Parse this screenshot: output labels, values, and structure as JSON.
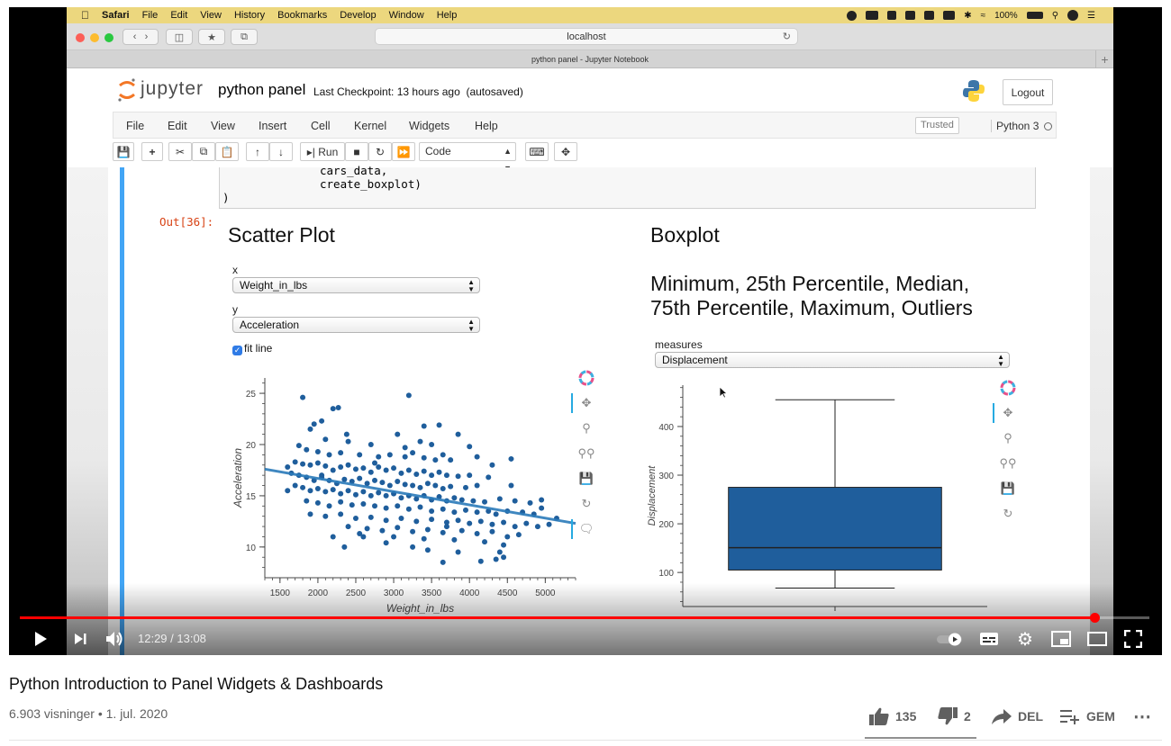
{
  "menubar": {
    "app": "Safari",
    "items": [
      "File",
      "Edit",
      "View",
      "History",
      "Bookmarks",
      "Develop",
      "Window",
      "Help"
    ],
    "battery": "100%"
  },
  "safari": {
    "url": "localhost",
    "tab_title": "python panel - Jupyter Notebook"
  },
  "jupyter": {
    "logo_text": "jupyter",
    "notebook_name": "python panel",
    "checkpoint": "Last Checkpoint: 13 hours ago",
    "autosaved": "(autosaved)",
    "logout": "Logout",
    "menu": [
      "File",
      "Edit",
      "View",
      "Insert",
      "Cell",
      "Kernel",
      "Widgets",
      "Help"
    ],
    "trusted": "Trusted",
    "kernel": "Python 3",
    "run_label": "Run",
    "cell_type": "Code"
  },
  "cell": {
    "code_lines": [
      "cars_data,",
      "create_boxplot)",
      ")"
    ],
    "out_prompt": "Out[36]:"
  },
  "scatter_panel": {
    "title": "Scatter Plot",
    "x_label": "x",
    "x_value": "Weight_in_lbs",
    "y_label": "y",
    "y_value": "Acceleration",
    "fit_line_label": "fit line",
    "fit_line_checked": true
  },
  "box_panel": {
    "title": "Boxplot",
    "subtitle_line1": "Minimum, 25th Percentile, Median,",
    "subtitle_line2": "75th Percentile, Maximum, Outliers",
    "measures_label": "measures",
    "measures_value": "Displacement"
  },
  "chart_data": [
    {
      "type": "scatter",
      "xlabel": "Weight_in_lbs",
      "ylabel": "Acceleration",
      "xlim": [
        1300,
        5400
      ],
      "ylim": [
        7,
        26.5
      ],
      "xticks": [
        1500,
        2000,
        2500,
        3000,
        3500,
        4000,
        4500,
        5000
      ],
      "yticks": [
        10,
        15,
        20,
        25
      ],
      "point_color": "#1f5e9c",
      "line_color": "#2b7bba",
      "fit_line": [
        [
          1300,
          17.6
        ],
        [
          5400,
          12.3
        ]
      ],
      "points": [
        [
          1800,
          24.6
        ],
        [
          1950,
          22
        ],
        [
          2050,
          22.3
        ],
        [
          2200,
          23.5
        ],
        [
          2270,
          23.6
        ],
        [
          3200,
          24.8
        ],
        [
          1900,
          21.5
        ],
        [
          2380,
          21
        ],
        [
          3050,
          21
        ],
        [
          3400,
          21.8
        ],
        [
          3600,
          21.9
        ],
        [
          3850,
          21
        ],
        [
          2100,
          20.5
        ],
        [
          2400,
          20.3
        ],
        [
          2700,
          20
        ],
        [
          3350,
          20.3
        ],
        [
          3150,
          19.7
        ],
        [
          3500,
          20
        ],
        [
          4000,
          19.8
        ],
        [
          1750,
          19.9
        ],
        [
          1850,
          19.5
        ],
        [
          2000,
          19.3
        ],
        [
          2150,
          19
        ],
        [
          2300,
          19.2
        ],
        [
          2550,
          19
        ],
        [
          2800,
          18.8
        ],
        [
          2950,
          19
        ],
        [
          3150,
          18.8
        ],
        [
          3250,
          19.2
        ],
        [
          3400,
          18.7
        ],
        [
          3650,
          19
        ],
        [
          3750,
          18.5
        ],
        [
          4100,
          18.8
        ],
        [
          4300,
          18
        ],
        [
          4550,
          18.6
        ],
        [
          1700,
          18.3
        ],
        [
          1800,
          18.1
        ],
        [
          1900,
          18
        ],
        [
          2000,
          18.2
        ],
        [
          2100,
          17.9
        ],
        [
          2200,
          17.5
        ],
        [
          2300,
          17.8
        ],
        [
          2400,
          18
        ],
        [
          2500,
          17.6
        ],
        [
          2600,
          17.7
        ],
        [
          2700,
          17.3
        ],
        [
          2800,
          17.8
        ],
        [
          2900,
          17.5
        ],
        [
          3000,
          17.7
        ],
        [
          3100,
          17.2
        ],
        [
          3200,
          17.5
        ],
        [
          3300,
          17.1
        ],
        [
          3400,
          17.4
        ],
        [
          3500,
          17
        ],
        [
          3600,
          17.3
        ],
        [
          3700,
          17
        ],
        [
          3850,
          16.9
        ],
        [
          4000,
          17
        ],
        [
          1650,
          17.2
        ],
        [
          1750,
          17
        ],
        [
          1850,
          16.8
        ],
        [
          1950,
          16.5
        ],
        [
          2050,
          16.8
        ],
        [
          2150,
          16.5
        ],
        [
          2250,
          16.2
        ],
        [
          2350,
          16.6
        ],
        [
          2450,
          16.4
        ],
        [
          2550,
          16.7
        ],
        [
          2650,
          16.2
        ],
        [
          2750,
          16.5
        ],
        [
          2850,
          16.3
        ],
        [
          2950,
          16
        ],
        [
          3050,
          16.4
        ],
        [
          3150,
          16.1
        ],
        [
          3250,
          16
        ],
        [
          3350,
          15.8
        ],
        [
          3450,
          16.2
        ],
        [
          3550,
          16
        ],
        [
          3650,
          15.7
        ],
        [
          3750,
          15.9
        ],
        [
          3950,
          15.8
        ],
        [
          4100,
          16
        ],
        [
          1700,
          16
        ],
        [
          1800,
          15.8
        ],
        [
          1900,
          15.5
        ],
        [
          2000,
          15.7
        ],
        [
          2100,
          15.4
        ],
        [
          2200,
          15.6
        ],
        [
          2300,
          15.2
        ],
        [
          2400,
          15.5
        ],
        [
          2500,
          15.1
        ],
        [
          2600,
          15.4
        ],
        [
          2700,
          15
        ],
        [
          2800,
          15.3
        ],
        [
          2900,
          15
        ],
        [
          3000,
          15.2
        ],
        [
          3100,
          14.8
        ],
        [
          3200,
          15
        ],
        [
          3300,
          14.7
        ],
        [
          3400,
          15
        ],
        [
          3500,
          14.6
        ],
        [
          3600,
          14.9
        ],
        [
          3700,
          14.5
        ],
        [
          3800,
          14.8
        ],
        [
          3900,
          14.6
        ],
        [
          4050,
          14.5
        ],
        [
          4200,
          14.4
        ],
        [
          4400,
          14.7
        ],
        [
          4600,
          14.5
        ],
        [
          1850,
          14.5
        ],
        [
          2000,
          14.3
        ],
        [
          2150,
          14
        ],
        [
          2300,
          14.4
        ],
        [
          2450,
          14.1
        ],
        [
          2600,
          14.2
        ],
        [
          2750,
          14
        ],
        [
          2900,
          13.8
        ],
        [
          3050,
          14
        ],
        [
          3200,
          13.7
        ],
        [
          3350,
          13.9
        ],
        [
          3500,
          13.5
        ],
        [
          3650,
          13.7
        ],
        [
          3800,
          13.4
        ],
        [
          3950,
          13.6
        ],
        [
          4100,
          13.4
        ],
        [
          4250,
          13.5
        ],
        [
          4350,
          13.2
        ],
        [
          4500,
          13.5
        ],
        [
          4700,
          13.4
        ],
        [
          4850,
          13.2
        ],
        [
          1900,
          13.2
        ],
        [
          2100,
          13
        ],
        [
          2300,
          13.2
        ],
        [
          2500,
          12.8
        ],
        [
          2700,
          12.9
        ],
        [
          2900,
          12.6
        ],
        [
          3100,
          12.8
        ],
        [
          3300,
          12.5
        ],
        [
          3500,
          12.7
        ],
        [
          3700,
          12.4
        ],
        [
          3850,
          12.6
        ],
        [
          4000,
          12.3
        ],
        [
          4150,
          12.5
        ],
        [
          4300,
          12.2
        ],
        [
          4450,
          12.4
        ],
        [
          4600,
          12
        ],
        [
          4750,
          12.3
        ],
        [
          4900,
          12
        ],
        [
          5050,
          12.2
        ],
        [
          2400,
          12
        ],
        [
          2650,
          11.8
        ],
        [
          2850,
          11.6
        ],
        [
          3050,
          11.9
        ],
        [
          3250,
          11.5
        ],
        [
          3450,
          11.7
        ],
        [
          3650,
          11.4
        ],
        [
          3900,
          11.6
        ],
        [
          4100,
          11.3
        ],
        [
          4300,
          11.5
        ],
        [
          4500,
          11
        ],
        [
          4650,
          11.2
        ],
        [
          2200,
          11
        ],
        [
          2600,
          11
        ],
        [
          3000,
          11
        ],
        [
          3400,
          10.8
        ],
        [
          3800,
          10.7
        ],
        [
          4200,
          10.5
        ],
        [
          4450,
          10.2
        ],
        [
          4400,
          9.5
        ],
        [
          4350,
          8.8
        ],
        [
          4450,
          9
        ],
        [
          3850,
          9.5
        ],
        [
          3450,
          9.7
        ],
        [
          3250,
          10
        ],
        [
          3650,
          8.5
        ],
        [
          4150,
          8.6
        ],
        [
          2350,
          10
        ],
        [
          2550,
          11.3
        ],
        [
          2900,
          10.4
        ],
        [
          4950,
          13.8
        ],
        [
          5150,
          12.8
        ],
        [
          4800,
          14.3
        ],
        [
          3700,
          12
        ],
        [
          4550,
          16
        ],
        [
          4250,
          16.8
        ],
        [
          1600,
          15.5
        ],
        [
          1600,
          17.8
        ],
        [
          2050,
          17
        ],
        [
          2750,
          18.2
        ],
        [
          3550,
          18.5
        ],
        [
          4950,
          14.6
        ]
      ]
    },
    {
      "type": "box",
      "ylabel": "Displacement",
      "ylim": [
        30,
        485
      ],
      "yticks": [
        100,
        200,
        300,
        400
      ],
      "box_color": "#1f5e9c",
      "minimum": 68,
      "q1": 105,
      "median": 151,
      "q3": 275,
      "maximum": 455
    }
  ],
  "player": {
    "time": "12:29 / 13:08",
    "progress_fraction": 0.951
  },
  "video": {
    "title": "Python Introduction to Panel Widgets & Dashboards",
    "meta": "6.903 visninger • 1. jul. 2020",
    "likes": "135",
    "dislikes": "2",
    "share": "DEL",
    "save": "GEM"
  }
}
